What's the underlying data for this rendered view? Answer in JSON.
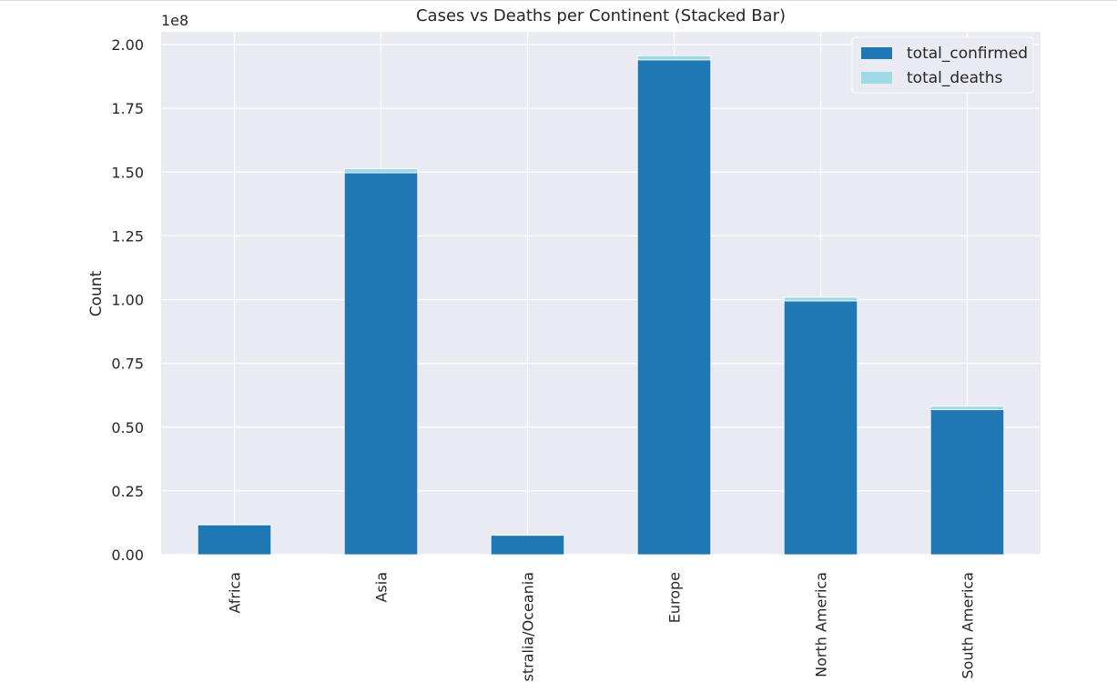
{
  "chart_data": {
    "type": "bar",
    "stacked": true,
    "title": "Cases vs Deaths per Continent (Stacked Bar)",
    "xlabel": "",
    "ylabel": "Count",
    "y_offset_label": "1e8",
    "ylim": [
      0,
      2.05
    ],
    "yticks": [
      0.0,
      0.25,
      0.5,
      0.75,
      1.0,
      1.25,
      1.5,
      1.75,
      2.0
    ],
    "ytick_labels": [
      "0.00",
      "0.25",
      "0.50",
      "0.75",
      "1.00",
      "1.25",
      "1.50",
      "1.75",
      "2.00"
    ],
    "categories": [
      "Africa",
      "Asia",
      "Australia/Oceania",
      "Europe",
      "North America",
      "South America"
    ],
    "series": [
      {
        "name": "total_confirmed",
        "color": "#1f77b4",
        "values": [
          0.117,
          1.497,
          0.076,
          1.94,
          0.995,
          0.569
        ]
      },
      {
        "name": "total_deaths",
        "color": "#9edae5",
        "values": [
          0.0026,
          0.016,
          0.0007,
          0.016,
          0.014,
          0.013
        ]
      }
    ],
    "legend_position": "top-right",
    "grid": true
  }
}
